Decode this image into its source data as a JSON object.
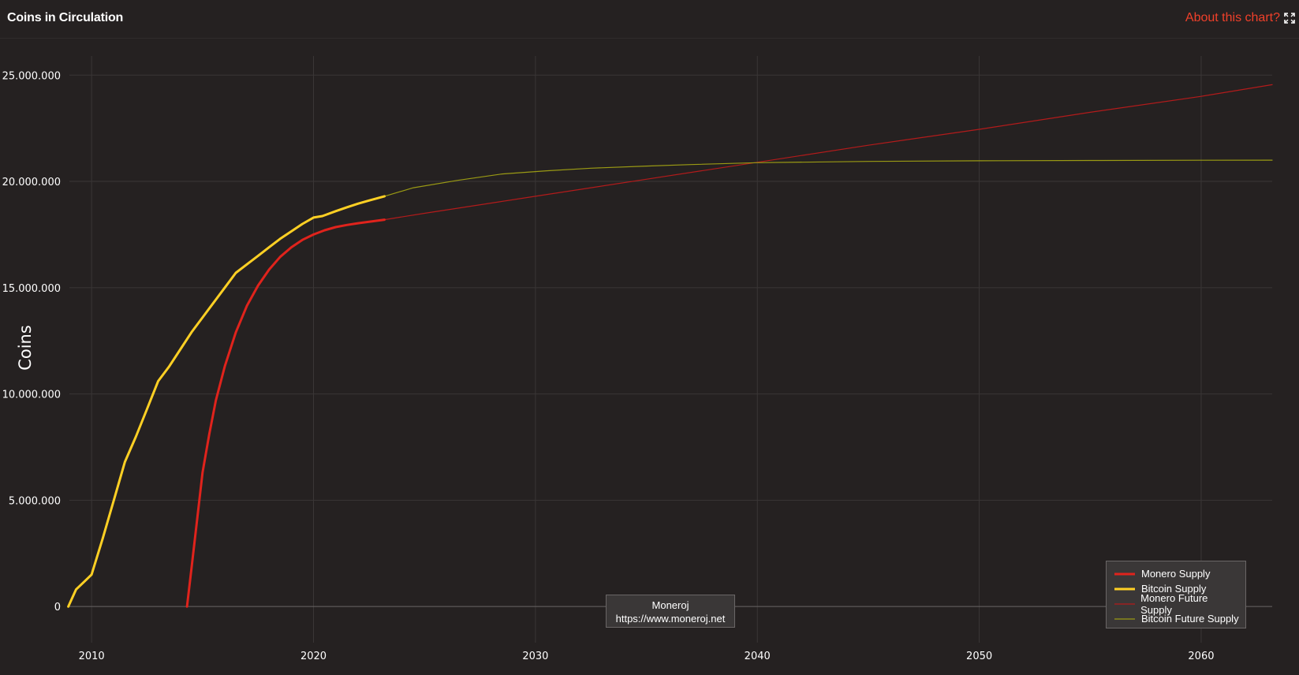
{
  "header": {
    "title": "Coins in Circulation",
    "about_label": "About this chart?",
    "expand_icon": "expand-icon"
  },
  "watermark": {
    "line1": "Moneroj",
    "line2": "https://www.moneroj.net"
  },
  "colors": {
    "background": "#252121",
    "grid": "#3a3636",
    "accent_link": "#f0402a",
    "monero": "#e0231c",
    "bitcoin": "#ffd024",
    "monero_future": "#b31b1b",
    "bitcoin_future": "#9a9a14"
  },
  "chart_data": {
    "type": "line",
    "title": "Coins in Circulation",
    "xlabel": "",
    "ylabel": "Coins",
    "xlim": [
      2009,
      2063.2
    ],
    "ylim": [
      -1700000,
      25900000
    ],
    "x_ticks": [
      2010,
      2020,
      2030,
      2040,
      2050,
      2060
    ],
    "y_ticks": [
      0,
      5000000,
      10000000,
      15000000,
      20000000,
      25000000
    ],
    "y_tick_labels": [
      "0",
      "5.000.000",
      "10.000.000",
      "15.000.000",
      "20.000.000",
      "25.000.000"
    ],
    "grid": true,
    "legend_position": "bottom-right",
    "series": [
      {
        "name": "Monero Supply",
        "color": "#e0231c",
        "width": 3,
        "x": [
          2014.3,
          2014.5,
          2014.8,
          2015.0,
          2015.3,
          2015.6,
          2016.0,
          2016.5,
          2017.0,
          2017.5,
          2018.0,
          2018.5,
          2019.0,
          2019.5,
          2020.0,
          2020.5,
          2021.0,
          2021.5,
          2022.0,
          2022.5,
          2023.2
        ],
        "y": [
          0,
          1800000,
          4500000,
          6300000,
          8100000,
          9700000,
          11300000,
          12900000,
          14150000,
          15100000,
          15850000,
          16450000,
          16900000,
          17250000,
          17500000,
          17700000,
          17850000,
          17950000,
          18030000,
          18100000,
          18200000
        ]
      },
      {
        "name": "Bitcoin Supply",
        "color": "#ffd024",
        "width": 3,
        "x": [
          2008.95,
          2009.3,
          2009.7,
          2010.0,
          2010.5,
          2011.0,
          2011.5,
          2012.0,
          2012.5,
          2013.0,
          2013.5,
          2014.0,
          2014.5,
          2015.0,
          2015.5,
          2016.0,
          2016.5,
          2017.0,
          2017.5,
          2018.0,
          2018.5,
          2019.0,
          2019.5,
          2020.0,
          2020.4,
          2021.0,
          2021.5,
          2022.0,
          2022.5,
          2023.2
        ],
        "y": [
          0,
          800000,
          1200000,
          1500000,
          3200000,
          5000000,
          6800000,
          8000000,
          9300000,
          10600000,
          11300000,
          12100000,
          12900000,
          13600000,
          14300000,
          15000000,
          15700000,
          16100000,
          16500000,
          16900000,
          17300000,
          17650000,
          18000000,
          18300000,
          18370000,
          18600000,
          18780000,
          18950000,
          19100000,
          19300000
        ]
      },
      {
        "name": "Monero Future Supply",
        "color": "#b31b1b",
        "width": 1.2,
        "x": [
          2023.2,
          2025,
          2030,
          2035,
          2040,
          2045,
          2050,
          2055,
          2060,
          2063.2
        ],
        "y": [
          18200000,
          18500000,
          19300000,
          20100000,
          20900000,
          21700000,
          22450000,
          23250000,
          24000000,
          24550000
        ]
      },
      {
        "name": "Bitcoin Future Supply",
        "color": "#9a9a14",
        "width": 1.2,
        "x": [
          2023.2,
          2024.5,
          2026.5,
          2028.5,
          2030.5,
          2032.5,
          2035,
          2037,
          2040,
          2045,
          2050,
          2055,
          2060,
          2063.2
        ],
        "y": [
          19300000,
          19700000,
          20050000,
          20350000,
          20500000,
          20620000,
          20720000,
          20790000,
          20880000,
          20940000,
          20970000,
          20985000,
          20995000,
          21000000
        ]
      }
    ]
  }
}
